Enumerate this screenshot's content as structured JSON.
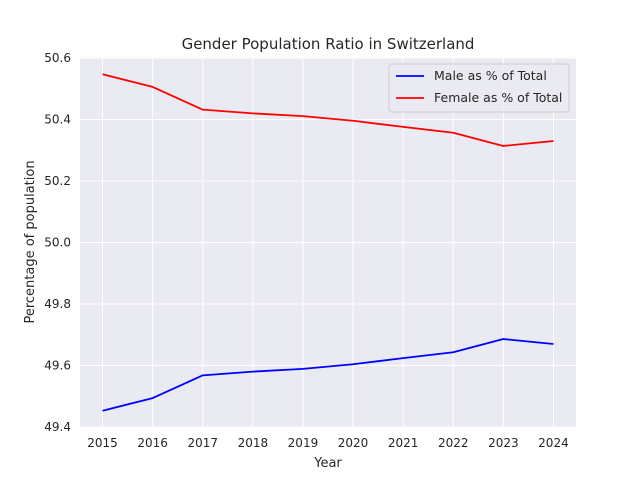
{
  "chart_data": {
    "type": "line",
    "title": "Gender Population Ratio in Switzerland",
    "xlabel": "Year",
    "ylabel": "Percentage of population",
    "x": [
      2015,
      2016,
      2017,
      2018,
      2019,
      2020,
      2021,
      2022,
      2023,
      2024
    ],
    "x_ticks": [
      "2015",
      "2016",
      "2017",
      "2018",
      "2019",
      "2020",
      "2021",
      "2022",
      "2023",
      "2024"
    ],
    "y_ticks": [
      "49.4",
      "49.6",
      "49.8",
      "50.0",
      "50.2",
      "50.4",
      "50.6"
    ],
    "ylim": [
      49.4,
      50.6
    ],
    "xlim": [
      2014.55,
      2024.45
    ],
    "grid": true,
    "legend_position": "top-right",
    "series": [
      {
        "name": "Male as % of Total",
        "color": "#0000ff",
        "values": [
          49.453,
          49.494,
          49.568,
          49.58,
          49.589,
          49.604,
          49.624,
          49.643,
          49.686,
          49.67
        ]
      },
      {
        "name": "Female as % of Total",
        "color": "#ff0000",
        "values": [
          50.547,
          50.506,
          50.432,
          50.42,
          50.411,
          50.396,
          50.376,
          50.357,
          50.314,
          50.33
        ]
      }
    ]
  }
}
